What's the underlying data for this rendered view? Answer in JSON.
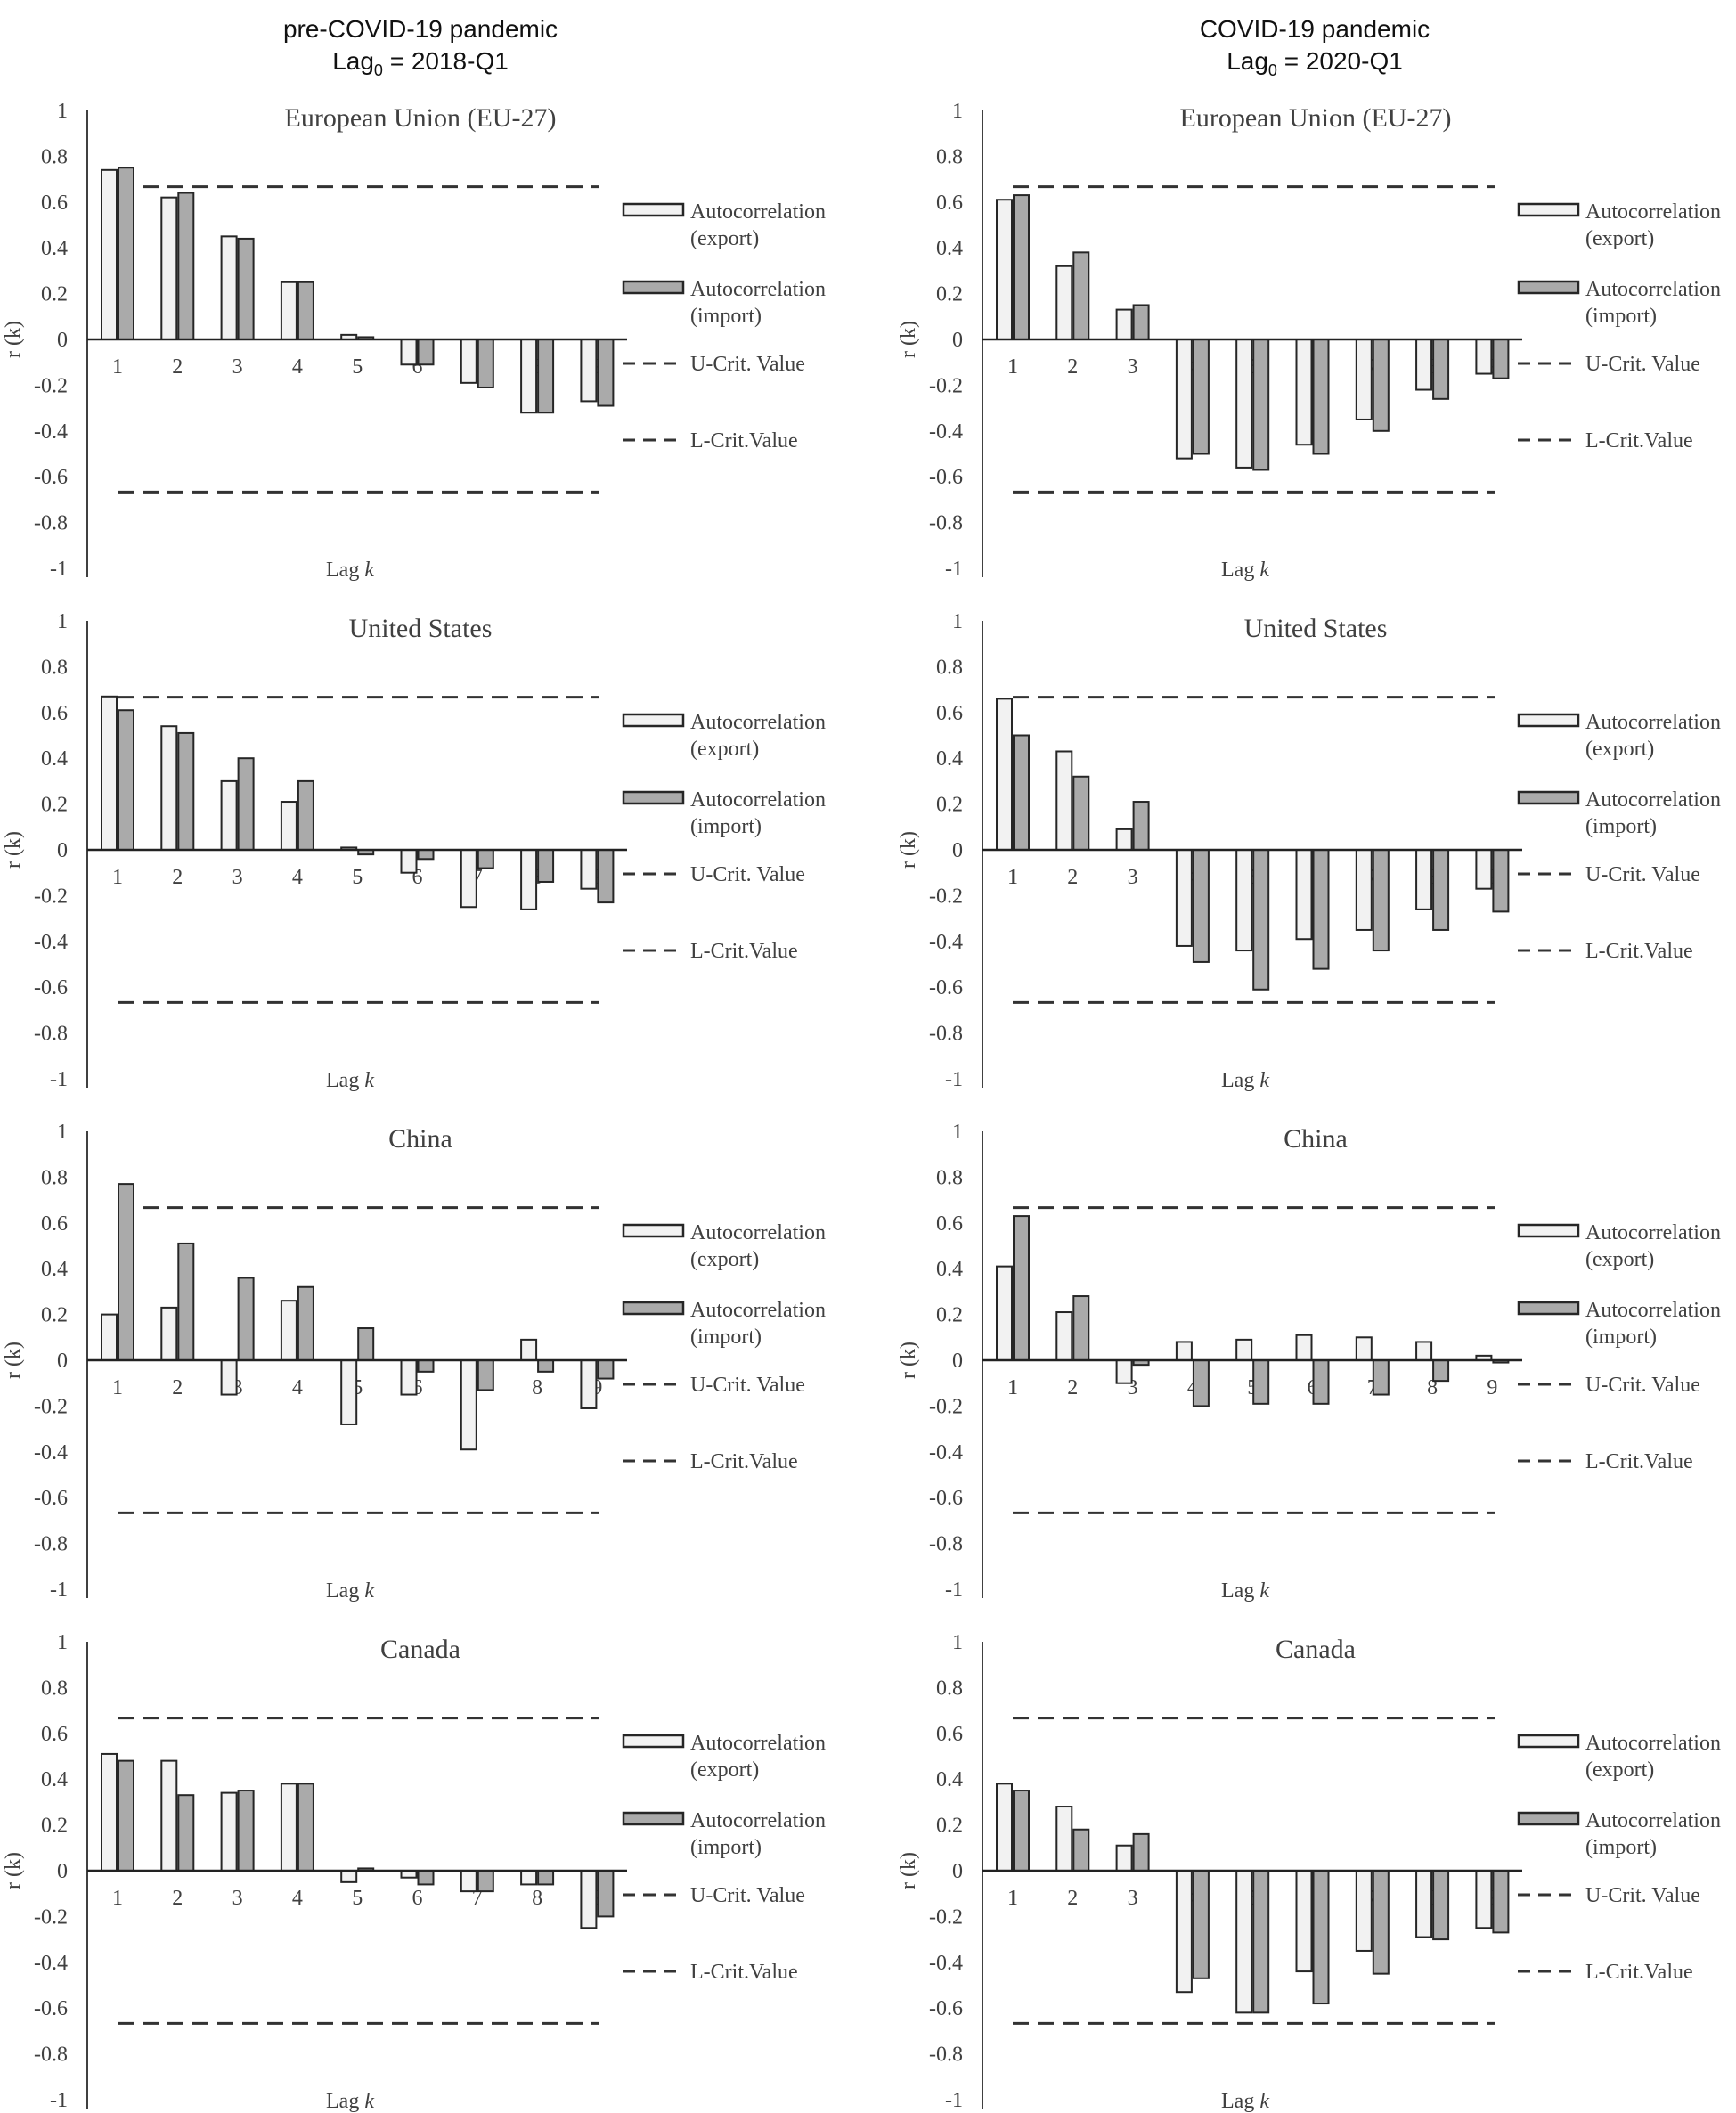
{
  "columns": [
    {
      "title": "pre-COVID-19 pandemic",
      "lag_label": "Lag",
      "lag_sub": "0",
      "lag_value": " = 2018-Q1"
    },
    {
      "title": "COVID-19 pandemic",
      "lag_label": "Lag",
      "lag_sub": "0",
      "lag_value": " = 2020-Q1"
    }
  ],
  "legend": {
    "export": [
      "Autocorrelation",
      "(export)"
    ],
    "import": [
      "Autocorrelation",
      "(import)"
    ],
    "ucrit": "U-Crit. Value",
    "lcrit": "L-Crit.Value"
  },
  "colors": {
    "export": "#f2f2f2",
    "import": "#aaaaaa",
    "stroke": "#262626",
    "axis": "#404040"
  },
  "chart_data": [
    {
      "type": "bar",
      "title": "European Union (EU-27)",
      "column": 0,
      "xlabel": "Lag k",
      "ylabel": "r (k)",
      "ylim": [
        -1,
        1
      ],
      "yticks": [
        "1",
        "0.8",
        "0.6",
        "0.4",
        "0.2",
        "0",
        "-0.2",
        "-0.4",
        "-0.6",
        "-0.8",
        "-1"
      ],
      "categories": [
        "1",
        "2",
        "3",
        "4",
        "5",
        "6",
        "7",
        "8",
        "9"
      ],
      "critical": 0.667,
      "series": [
        {
          "name": "Autocorrelation (export)",
          "values": [
            0.74,
            0.62,
            0.45,
            0.25,
            0.02,
            -0.11,
            -0.19,
            -0.32,
            -0.27
          ]
        },
        {
          "name": "Autocorrelation (import)",
          "values": [
            0.75,
            0.64,
            0.44,
            0.25,
            0.01,
            -0.11,
            -0.21,
            -0.32,
            -0.29
          ]
        }
      ]
    },
    {
      "type": "bar",
      "title": "European Union (EU-27)",
      "column": 1,
      "xlabel": "Lag k",
      "ylabel": "r (k)",
      "ylim": [
        -1,
        1
      ],
      "yticks": [
        "1",
        "0.8",
        "0.6",
        "0.4",
        "0.2",
        "0",
        "-0.2",
        "-0.4",
        "-0.6",
        "-0.8",
        "-1"
      ],
      "categories": [
        "1",
        "2",
        "3",
        "4",
        "5",
        "6",
        "7",
        "8",
        "9"
      ],
      "critical": 0.667,
      "series": [
        {
          "name": "Autocorrelation (export)",
          "values": [
            0.61,
            0.32,
            0.13,
            -0.52,
            -0.56,
            -0.46,
            -0.35,
            -0.22,
            -0.15
          ]
        },
        {
          "name": "Autocorrelation (import)",
          "values": [
            0.63,
            0.38,
            0.15,
            -0.5,
            -0.57,
            -0.5,
            -0.4,
            -0.26,
            -0.17
          ]
        }
      ]
    },
    {
      "type": "bar",
      "title": "United States",
      "column": 0,
      "xlabel": "Lag k",
      "ylabel": "r (k)",
      "ylim": [
        -1,
        1
      ],
      "yticks": [
        "1",
        "0.8",
        "0.6",
        "0.4",
        "0.2",
        "0",
        "-0.2",
        "-0.4",
        "-0.6",
        "-0.8",
        "-1"
      ],
      "categories": [
        "1",
        "2",
        "3",
        "4",
        "5",
        "6",
        "7",
        "8",
        "9"
      ],
      "critical": 0.667,
      "series": [
        {
          "name": "Autocorrelation (export)",
          "values": [
            0.67,
            0.54,
            0.3,
            0.21,
            0.01,
            -0.1,
            -0.25,
            -0.26,
            -0.17
          ]
        },
        {
          "name": "Autocorrelation (import)",
          "values": [
            0.61,
            0.51,
            0.4,
            0.3,
            -0.02,
            -0.04,
            -0.08,
            -0.14,
            -0.23
          ]
        }
      ]
    },
    {
      "type": "bar",
      "title": "United States",
      "column": 1,
      "xlabel": "Lag k",
      "ylabel": "r (k)",
      "ylim": [
        -1,
        1
      ],
      "yticks": [
        "1",
        "0.8",
        "0.6",
        "0.4",
        "0.2",
        "0",
        "-0.2",
        "-0.4",
        "-0.6",
        "-0.8",
        "-1"
      ],
      "categories": [
        "1",
        "2",
        "3",
        "4",
        "5",
        "6",
        "7",
        "8",
        "9"
      ],
      "critical": 0.667,
      "series": [
        {
          "name": "Autocorrelation (export)",
          "values": [
            0.66,
            0.43,
            0.09,
            -0.42,
            -0.44,
            -0.39,
            -0.35,
            -0.26,
            -0.17
          ]
        },
        {
          "name": "Autocorrelation (import)",
          "values": [
            0.5,
            0.32,
            0.21,
            -0.49,
            -0.61,
            -0.52,
            -0.44,
            -0.35,
            -0.27
          ]
        }
      ]
    },
    {
      "type": "bar",
      "title": "China",
      "column": 0,
      "xlabel": "Lag k",
      "ylabel": "r (k)",
      "ylim": [
        -1,
        1
      ],
      "yticks": [
        "1",
        "0.8",
        "0.6",
        "0.4",
        "0.2",
        "0",
        "-0.2",
        "-0.4",
        "-0.6",
        "-0.8",
        "-1"
      ],
      "categories": [
        "1",
        "2",
        "3",
        "4",
        "5",
        "6",
        "7",
        "8",
        "9"
      ],
      "critical": 0.667,
      "series": [
        {
          "name": "Autocorrelation (export)",
          "values": [
            0.2,
            0.23,
            -0.15,
            0.26,
            -0.28,
            -0.15,
            -0.39,
            0.09,
            -0.21
          ]
        },
        {
          "name": "Autocorrelation (import)",
          "values": [
            0.77,
            0.51,
            0.36,
            0.32,
            0.14,
            -0.05,
            -0.13,
            -0.05,
            -0.08
          ]
        }
      ]
    },
    {
      "type": "bar",
      "title": "China",
      "column": 1,
      "xlabel": "Lag k",
      "ylabel": "r (k)",
      "ylim": [
        -1,
        1
      ],
      "yticks": [
        "1",
        "0.8",
        "0.6",
        "0.4",
        "0.2",
        "0",
        "-0.2",
        "-0.4",
        "-0.6",
        "-0.8",
        "-1"
      ],
      "categories": [
        "1",
        "2",
        "3",
        "4",
        "5",
        "6",
        "7",
        "8",
        "9"
      ],
      "critical": 0.667,
      "series": [
        {
          "name": "Autocorrelation (export)",
          "values": [
            0.41,
            0.21,
            -0.1,
            0.08,
            0.09,
            0.11,
            0.1,
            0.08,
            0.02
          ]
        },
        {
          "name": "Autocorrelation (import)",
          "values": [
            0.63,
            0.28,
            -0.02,
            -0.2,
            -0.19,
            -0.19,
            -0.15,
            -0.09,
            -0.01
          ]
        }
      ]
    },
    {
      "type": "bar",
      "title": "Canada",
      "column": 0,
      "xlabel": "Lag k",
      "ylabel": "r (k)",
      "ylim": [
        -1,
        1
      ],
      "yticks": [
        "1",
        "0.8",
        "0.6",
        "0.4",
        "0.2",
        "0",
        "-0.2",
        "-0.4",
        "-0.6",
        "-0.8",
        "-1"
      ],
      "categories": [
        "1",
        "2",
        "3",
        "4",
        "5",
        "6",
        "7",
        "8",
        "9"
      ],
      "critical": 0.667,
      "series": [
        {
          "name": "Autocorrelation (export)",
          "values": [
            0.51,
            0.48,
            0.34,
            0.38,
            -0.05,
            -0.03,
            -0.09,
            -0.06,
            -0.25
          ]
        },
        {
          "name": "Autocorrelation (import)",
          "values": [
            0.48,
            0.33,
            0.35,
            0.38,
            0.01,
            -0.06,
            -0.09,
            -0.06,
            -0.2
          ]
        }
      ]
    },
    {
      "type": "bar",
      "title": "Canada",
      "column": 1,
      "xlabel": "Lag k",
      "ylabel": "r (k)",
      "ylim": [
        -1,
        1
      ],
      "yticks": [
        "1",
        "0.8",
        "0.6",
        "0.4",
        "0.2",
        "0",
        "-0.2",
        "-0.4",
        "-0.6",
        "-0.8",
        "-1"
      ],
      "categories": [
        "1",
        "2",
        "3",
        "4",
        "5",
        "6",
        "7",
        "8",
        "9"
      ],
      "critical": 0.667,
      "series": [
        {
          "name": "Autocorrelation (export)",
          "values": [
            0.38,
            0.28,
            0.11,
            -0.53,
            -0.62,
            -0.44,
            -0.35,
            -0.29,
            -0.25
          ]
        },
        {
          "name": "Autocorrelation (import)",
          "values": [
            0.35,
            0.18,
            0.16,
            -0.47,
            -0.62,
            -0.58,
            -0.45,
            -0.3,
            -0.27
          ]
        }
      ]
    }
  ]
}
